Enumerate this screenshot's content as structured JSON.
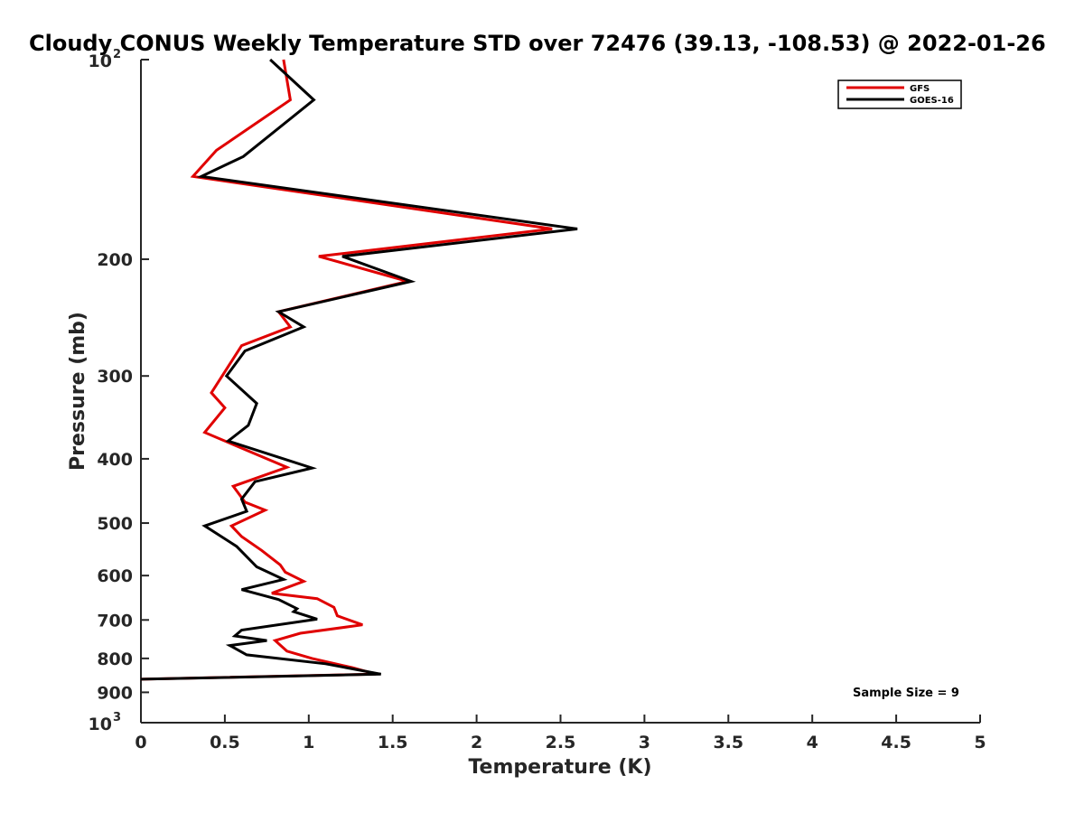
{
  "chart_data": {
    "type": "line",
    "title": "Cloudy CONUS Weekly Temperature STD over 72476 (39.13, -108.53) @ 2022-01-26",
    "xlabel": "Temperature (K)",
    "ylabel": "Pressure (mb)",
    "xlim": [
      0,
      5
    ],
    "ylim": [
      100,
      1000
    ],
    "y_scale": "log",
    "y_reversed": true,
    "x_ticks": [
      "0",
      "0.5",
      "1",
      "1.5",
      "2",
      "2.5",
      "3",
      "3.5",
      "4",
      "4.5",
      "5"
    ],
    "y_ticks": [
      {
        "value": 100,
        "base": "10",
        "exp": "2"
      },
      {
        "value": 200,
        "label": "200"
      },
      {
        "value": 300,
        "label": "300"
      },
      {
        "value": 400,
        "label": "400"
      },
      {
        "value": 500,
        "label": "500"
      },
      {
        "value": 600,
        "label": "600"
      },
      {
        "value": 700,
        "label": "700"
      },
      {
        "value": 800,
        "label": "800"
      },
      {
        "value": 900,
        "label": "900"
      },
      {
        "value": 1000,
        "base": "10",
        "exp": "3"
      }
    ],
    "legend_position": "top-right",
    "grid": false,
    "annotation": "Sample Size = 9",
    "series": [
      {
        "name": "GFS",
        "color": "#e00000",
        "points": [
          [
            0.85,
            100
          ],
          [
            0.89,
            115
          ],
          [
            0.45,
            137
          ],
          [
            0.31,
            150
          ],
          [
            2.45,
            180
          ],
          [
            1.06,
            198
          ],
          [
            1.59,
            216
          ],
          [
            0.82,
            240
          ],
          [
            0.89,
            253
          ],
          [
            0.6,
            270
          ],
          [
            0.42,
            318
          ],
          [
            0.5,
            335
          ],
          [
            0.38,
            365
          ],
          [
            0.87,
            412
          ],
          [
            0.55,
            440
          ],
          [
            0.62,
            465
          ],
          [
            0.74,
            478
          ],
          [
            0.54,
            505
          ],
          [
            0.6,
            524
          ],
          [
            0.72,
            550
          ],
          [
            0.83,
            578
          ],
          [
            0.86,
            593
          ],
          [
            0.97,
            612
          ],
          [
            0.78,
            638
          ],
          [
            1.05,
            650
          ],
          [
            1.15,
            670
          ],
          [
            1.17,
            690
          ],
          [
            1.32,
            712
          ],
          [
            0.95,
            733
          ],
          [
            0.8,
            752
          ],
          [
            0.87,
            780
          ],
          [
            1.02,
            800
          ],
          [
            1.26,
            826
          ],
          [
            1.4,
            845
          ],
          [
            0.0,
            860
          ]
        ]
      },
      {
        "name": "GOES-16",
        "color": "#000000",
        "points": [
          [
            0.77,
            100
          ],
          [
            1.03,
            115
          ],
          [
            0.61,
            140
          ],
          [
            0.36,
            150
          ],
          [
            2.6,
            180
          ],
          [
            1.2,
            198
          ],
          [
            1.61,
            216
          ],
          [
            0.82,
            240
          ],
          [
            0.97,
            253
          ],
          [
            0.62,
            275
          ],
          [
            0.51,
            300
          ],
          [
            0.69,
            330
          ],
          [
            0.64,
            356
          ],
          [
            0.52,
            376
          ],
          [
            1.02,
            413
          ],
          [
            0.68,
            433
          ],
          [
            0.6,
            460
          ],
          [
            0.63,
            480
          ],
          [
            0.38,
            505
          ],
          [
            0.57,
            542
          ],
          [
            0.69,
            582
          ],
          [
            0.85,
            608
          ],
          [
            0.6,
            630
          ],
          [
            0.82,
            652
          ],
          [
            0.93,
            673
          ],
          [
            0.91,
            680
          ],
          [
            1.05,
            698
          ],
          [
            0.6,
            725
          ],
          [
            0.56,
            740
          ],
          [
            0.75,
            752
          ],
          [
            0.53,
            765
          ],
          [
            0.63,
            790
          ],
          [
            1.1,
            815
          ],
          [
            1.43,
            845
          ],
          [
            0.0,
            860
          ]
        ]
      }
    ]
  }
}
